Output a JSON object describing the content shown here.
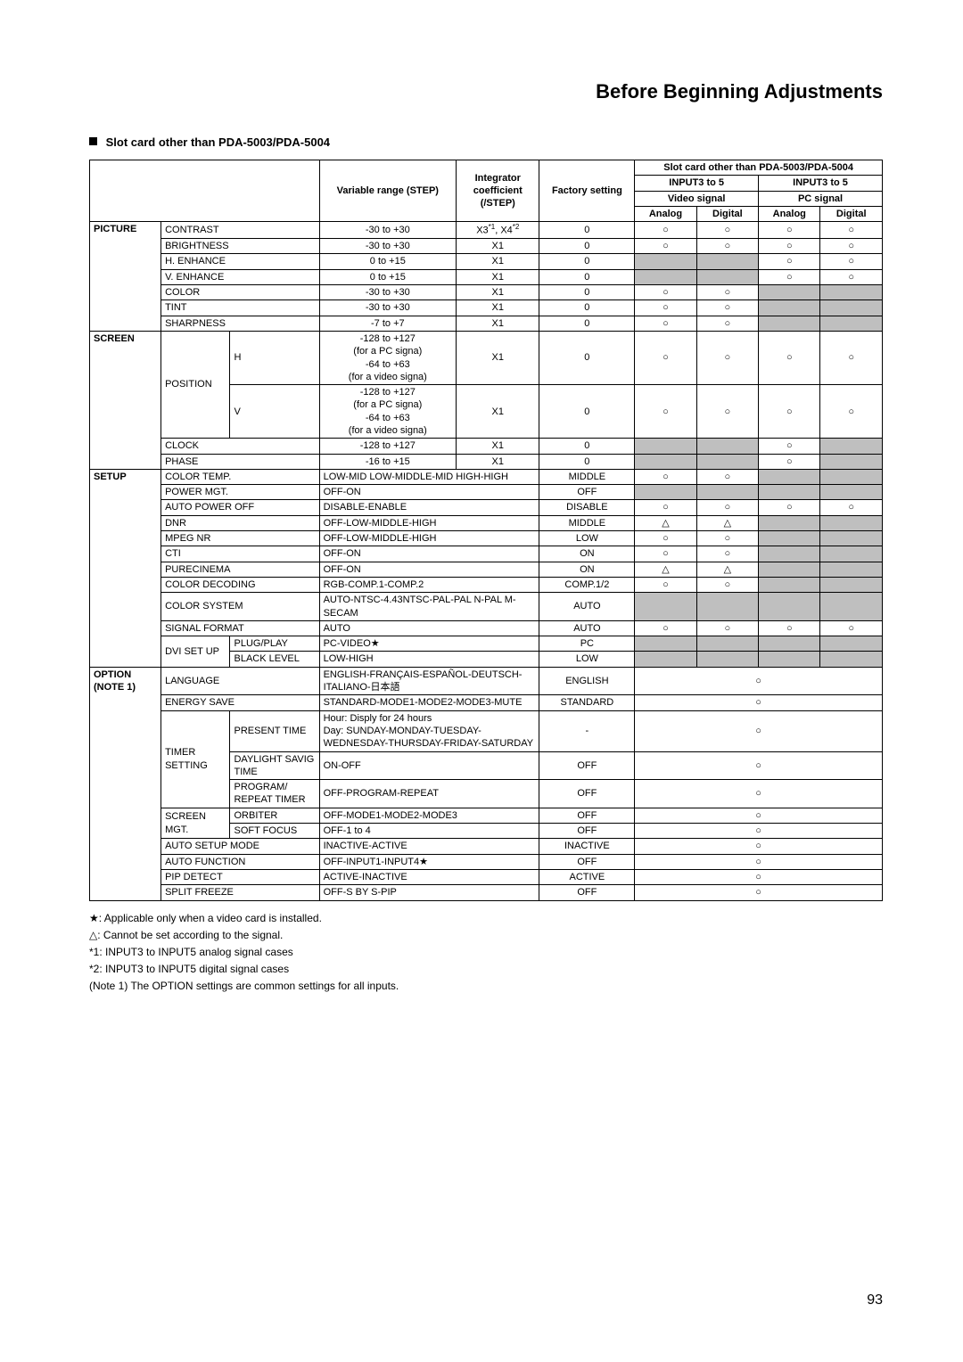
{
  "page_title": "Before Beginning Adjustments",
  "section_heading": "Slot card other than PDA-5003/PDA-5004",
  "page_number": "93",
  "header": {
    "range": "Variable range (STEP)",
    "coeff": "Integrator coefficient (/STEP)",
    "factory": "Factory setting",
    "slot_title": "Slot card other than PDA-5003/PDA-5004",
    "input_a": "INPUT3 to 5",
    "input_b": "INPUT3 to 5",
    "video_signal": "Video signal",
    "pc_signal": "PC signal",
    "analog": "Analog",
    "digital": "Digital"
  },
  "symbols": {
    "circle": "○",
    "triangle": "△",
    "star": "★",
    "dash": "-"
  },
  "rows": [
    {
      "cat": "PICTURE",
      "sub": "CONTRAST",
      "range": "-30 to +30",
      "coeff": "X3*1, X4*2",
      "factory": "0",
      "marks": [
        "○",
        "○",
        "○",
        "○"
      ]
    },
    {
      "cat": "",
      "sub": "BRIGHTNESS",
      "range": "-30 to +30",
      "coeff": "X1",
      "factory": "0",
      "marks": [
        "○",
        "○",
        "○",
        "○"
      ]
    },
    {
      "cat": "",
      "sub": "H. ENHANCE",
      "range": "0 to +15",
      "coeff": "X1",
      "factory": "0",
      "marks": [
        "shade",
        "shade",
        "○",
        "○"
      ]
    },
    {
      "cat": "",
      "sub": "V. ENHANCE",
      "range": "0 to +15",
      "coeff": "X1",
      "factory": "0",
      "marks": [
        "shade",
        "shade",
        "○",
        "○"
      ]
    },
    {
      "cat": "",
      "sub": "COLOR",
      "range": "-30 to +30",
      "coeff": "X1",
      "factory": "0",
      "marks": [
        "○",
        "○",
        "shade",
        "shade"
      ]
    },
    {
      "cat": "",
      "sub": "TINT",
      "range": "-30 to +30",
      "coeff": "X1",
      "factory": "0",
      "marks": [
        "○",
        "○",
        "shade",
        "shade"
      ]
    },
    {
      "cat": "",
      "sub": "SHARPNESS",
      "range": "-7 to +7",
      "coeff": "X1",
      "factory": "0",
      "marks": [
        "○",
        "○",
        "shade",
        "shade"
      ]
    }
  ],
  "screen_rows": [
    {
      "cat": "SCREEN",
      "sub1": "POSITION",
      "sub2": "H",
      "range": "-128 to +127\n(for a PC signa)\n-64 to +63\n(for a video signa)",
      "coeff": "X1",
      "factory": "0",
      "marks": [
        "○",
        "○",
        "○",
        "○"
      ]
    },
    {
      "cat": "",
      "sub1": "",
      "sub2": "V",
      "range": "-128 to +127\n(for a PC signa)\n-64 to +63\n(for a video signa)",
      "coeff": "X1",
      "factory": "0",
      "marks": [
        "○",
        "○",
        "○",
        "○"
      ]
    },
    {
      "cat": "",
      "sub": "CLOCK",
      "range": "-128 to +127",
      "coeff": "X1",
      "factory": "0",
      "marks": [
        "shade",
        "shade",
        "○",
        "shade"
      ]
    },
    {
      "cat": "",
      "sub": "PHASE",
      "range": "-16 to +15",
      "coeff": "X1",
      "factory": "0",
      "marks": [
        "shade",
        "shade",
        "○",
        "shade"
      ]
    }
  ],
  "setup_rows": [
    {
      "cat": "SETUP",
      "sub": "COLOR TEMP.",
      "range": "LOW-MID LOW-MIDDLE-MID HIGH-HIGH",
      "factory": "MIDDLE",
      "marks": [
        "○",
        "○",
        "shade",
        "shade"
      ]
    },
    {
      "cat": "",
      "sub": "POWER MGT.",
      "range": "OFF-ON",
      "factory": "OFF",
      "marks": [
        "shade",
        "shade",
        "shade",
        "shade"
      ]
    },
    {
      "cat": "",
      "sub": "AUTO POWER OFF",
      "range": "DISABLE-ENABLE",
      "factory": "DISABLE",
      "marks": [
        "○",
        "○",
        "○",
        "○"
      ]
    },
    {
      "cat": "",
      "sub": "DNR",
      "range": "OFF-LOW-MIDDLE-HIGH",
      "factory": "MIDDLE",
      "marks": [
        "△",
        "△",
        "shade",
        "shade"
      ]
    },
    {
      "cat": "",
      "sub": "MPEG NR",
      "range": "OFF-LOW-MIDDLE-HIGH",
      "factory": "LOW",
      "marks": [
        "○",
        "○",
        "shade",
        "shade"
      ]
    },
    {
      "cat": "",
      "sub": "CTI",
      "range": "OFF-ON",
      "factory": "ON",
      "marks": [
        "○",
        "○",
        "shade",
        "shade"
      ]
    },
    {
      "cat": "",
      "sub": "PURECINEMA",
      "range": "OFF-ON",
      "factory": "ON",
      "marks": [
        "△",
        "△",
        "shade",
        "shade"
      ]
    },
    {
      "cat": "",
      "sub": "COLOR DECODING",
      "range": "RGB-COMP.1-COMP.2",
      "factory": "COMP.1/2",
      "marks": [
        "○",
        "○",
        "shade",
        "shade"
      ]
    },
    {
      "cat": "",
      "sub": "COLOR SYSTEM",
      "range": "AUTO-NTSC-4.43NTSC-PAL-PAL N-PAL M-SECAM",
      "factory": "AUTO",
      "marks": [
        "shade",
        "shade",
        "shade",
        "shade"
      ]
    },
    {
      "cat": "",
      "sub": "SIGNAL FORMAT",
      "range": "AUTO",
      "factory": "AUTO",
      "marks": [
        "○",
        "○",
        "○",
        "○"
      ]
    }
  ],
  "dvi_rows": [
    {
      "sub1": "DVI SET UP",
      "sub2": "PLUG/PLAY",
      "range": "PC-VIDEO★",
      "factory": "PC",
      "marks": [
        "shade",
        "shade",
        "shade",
        "shade"
      ]
    },
    {
      "sub1": "",
      "sub2": "BLACK LEVEL",
      "range": "LOW-HIGH",
      "factory": "LOW",
      "marks": [
        "shade",
        "shade",
        "shade",
        "shade"
      ]
    }
  ],
  "option_rows": [
    {
      "cat": "OPTION (NOTE 1)",
      "sub": "LANGUAGE",
      "range": "ENGLISH-FRANÇAIS-ESPAÑOL-DEUTSCH-ITALIANO-日本語",
      "factory": "ENGLISH",
      "mark": "○"
    },
    {
      "cat": "",
      "sub": "ENERGY SAVE",
      "range": "STANDARD-MODE1-MODE2-MODE3-MUTE",
      "factory": "STANDARD",
      "mark": "○"
    }
  ],
  "timer_rows": [
    {
      "sub1": "TIMER SETTING",
      "sub2": "PRESENT TIME",
      "range": "Hour: Disply for 24 hours\nDay: SUNDAY-MONDAY-TUESDAY-WEDNESDAY-THURSDAY-FRIDAY-SATURDAY",
      "factory": "-",
      "mark": "○"
    },
    {
      "sub1": "",
      "sub2": "DAYLIGHT SAVIG TIME",
      "range": "ON-OFF",
      "factory": "OFF",
      "mark": "○"
    },
    {
      "sub1": "",
      "sub2": "PROGRAM/ REPEAT TIMER",
      "range": "OFF-PROGRAM-REPEAT",
      "factory": "OFF",
      "mark": "○"
    }
  ],
  "screen_mgt_rows": [
    {
      "sub1": "SCREEN MGT.",
      "sub2": "ORBITER",
      "range": "OFF-MODE1-MODE2-MODE3",
      "factory": "OFF",
      "mark": "○"
    },
    {
      "sub1": "",
      "sub2": "SOFT FOCUS",
      "range": "OFF-1 to 4",
      "factory": "OFF",
      "mark": "○"
    }
  ],
  "option_tail_rows": [
    {
      "sub": "AUTO SETUP MODE",
      "range": "INACTIVE-ACTIVE",
      "factory": "INACTIVE",
      "mark": "○"
    },
    {
      "sub": "AUTO FUNCTION",
      "range": "OFF-INPUT1-INPUT4★",
      "factory": "OFF",
      "mark": "○"
    },
    {
      "sub": "PIP DETECT",
      "range": "ACTIVE-INACTIVE",
      "factory": "ACTIVE",
      "mark": "○"
    },
    {
      "sub": "SPLIT FREEZE",
      "range": "OFF-S BY S-PIP",
      "factory": "OFF",
      "mark": "○"
    }
  ],
  "notes": [
    "★: Applicable only when a video card is installed.",
    "△: Cannot be set according to the signal.",
    "*1: INPUT3 to INPUT5 analog signal cases",
    "*2: INPUT3 to INPUT5 digital signal cases",
    "(Note 1) The OPTION settings are common settings for all inputs."
  ]
}
